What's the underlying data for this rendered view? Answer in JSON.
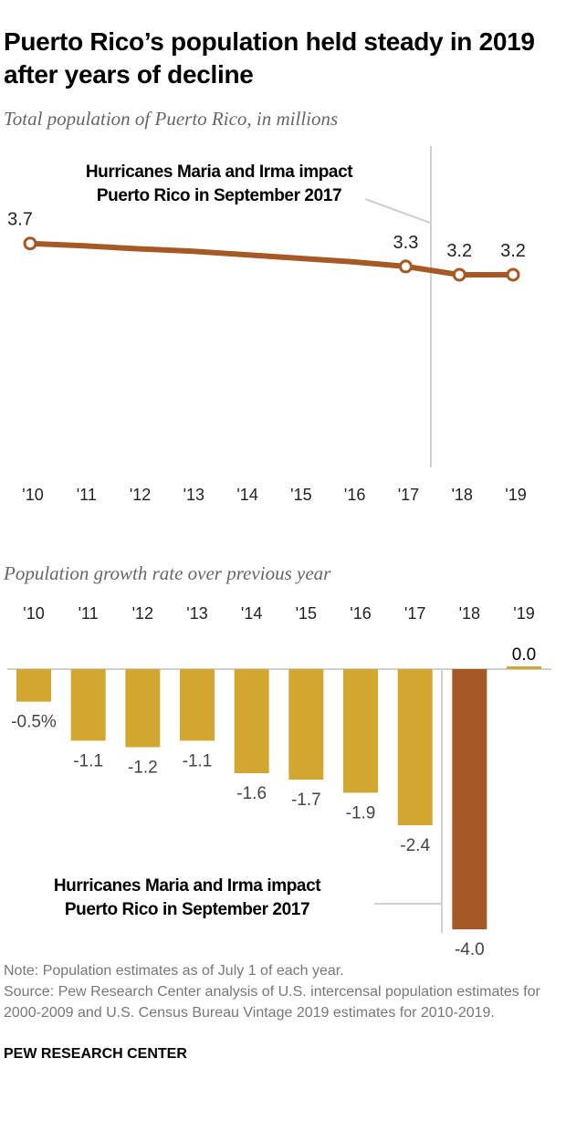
{
  "title": "Puerto Rico’s population held steady in 2019 after years of decline",
  "chart_data": [
    {
      "type": "line",
      "title": "Total population of Puerto Rico, in millions",
      "categories": [
        "'10",
        "'11",
        "'12",
        "'13",
        "'14",
        "'15",
        "'16",
        "'17",
        "'18",
        "'19"
      ],
      "values": [
        3.72,
        3.68,
        3.63,
        3.59,
        3.53,
        3.47,
        3.41,
        3.33,
        3.19,
        3.19
      ],
      "data_labels": {
        "0": "3.7",
        "7": "3.3",
        "8": "3.2",
        "9": "3.2"
      },
      "ylim": [
        0,
        3.7
      ],
      "color": "#A55A26",
      "grid": false,
      "annotation": "Hurricanes Maria and Irma impact Puerto Rico in September 2017"
    },
    {
      "type": "bar",
      "title": "Population growth rate over previous year",
      "categories": [
        "'10",
        "'11",
        "'12",
        "'13",
        "'14",
        "'15",
        "'16",
        "'17",
        "'18",
        "'19"
      ],
      "values": [
        -0.5,
        -1.1,
        -1.2,
        -1.1,
        -1.6,
        -1.7,
        -1.9,
        -2.4,
        -4.0,
        0.0
      ],
      "data_labels": [
        "-0.5%",
        "-1.1",
        "-1.2",
        "-1.1",
        "-1.6",
        "-1.7",
        "-1.9",
        "-2.4",
        "-4.0",
        "0.0"
      ],
      "colors": {
        "default": "#D1A730",
        "highlight": "#A55A26"
      },
      "highlight_index": 8,
      "ylim": [
        -4.0,
        0
      ],
      "grid": false,
      "annotation": "Hurricanes Maria and Irma impact Puerto Rico in September 2017"
    }
  ],
  "notes": {
    "note": "Note: Population estimates as of July 1 of each year.",
    "source": "Source: Pew Research Center analysis of U.S. intercensal population estimates for 2000-2009 and U.S. Census Bureau Vintage 2019 estimates for 2010-2019."
  },
  "brand": "PEW RESEARCH CENTER"
}
